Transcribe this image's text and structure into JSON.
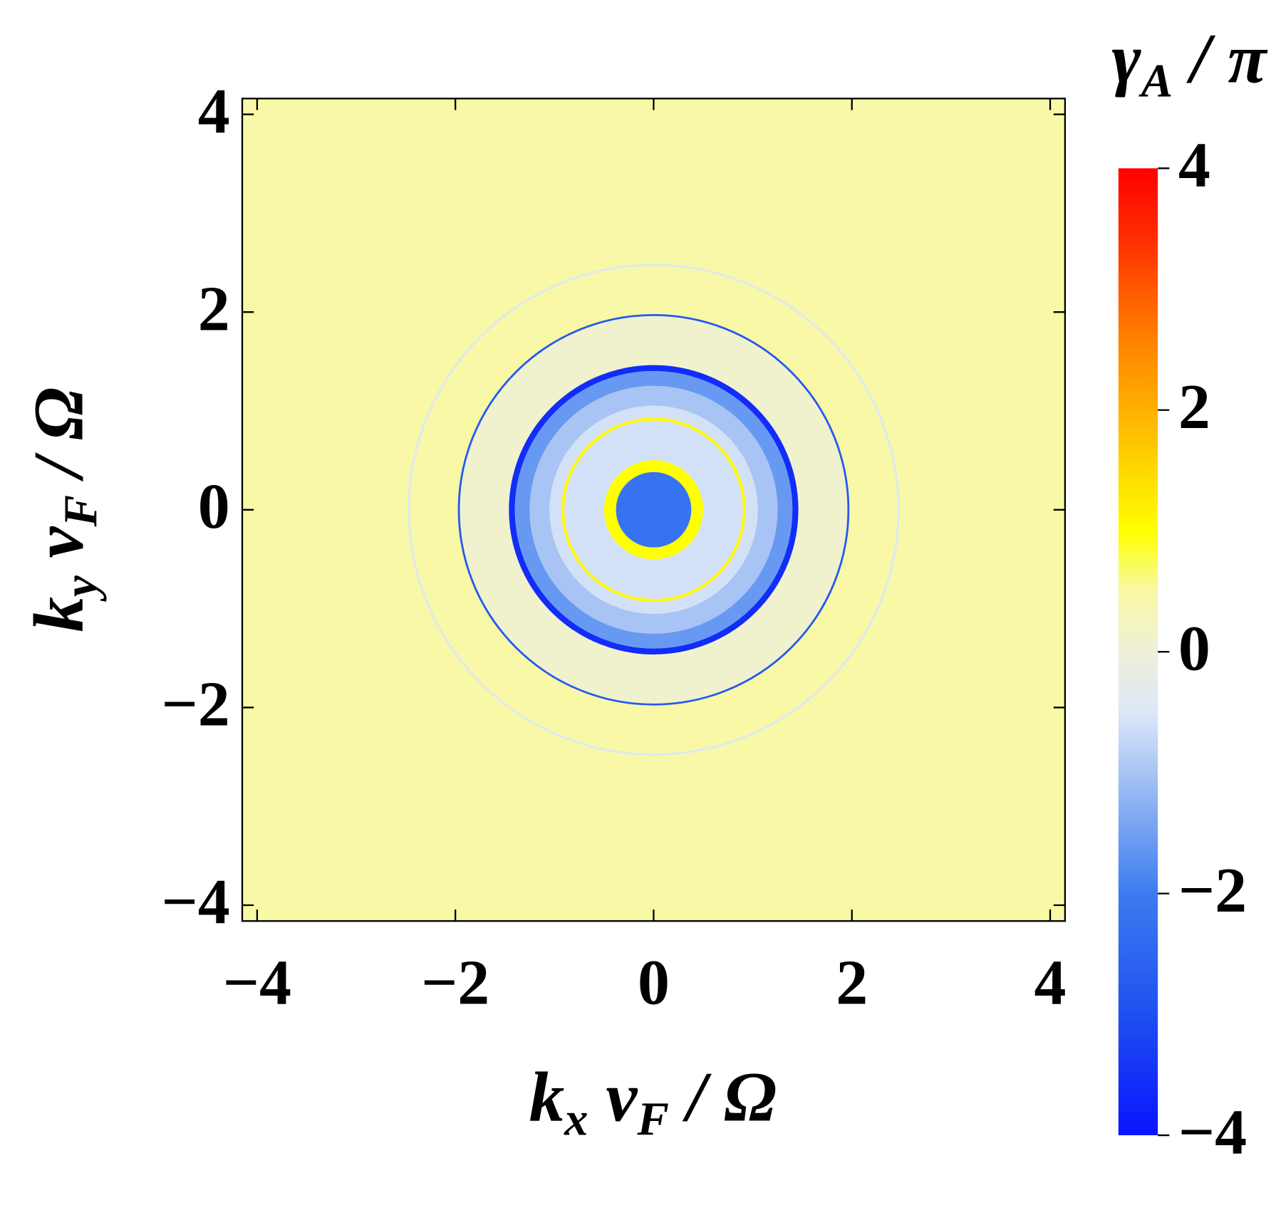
{
  "chart_data": {
    "type": "density",
    "xlabel": [
      "k",
      "x",
      " v",
      "F",
      " / Ω"
    ],
    "ylabel": [
      "k",
      "y",
      " v",
      "F",
      " / Ω"
    ],
    "colorbar_label": [
      "γ",
      "A",
      " / π"
    ],
    "xlim": [
      -4.15,
      4.15
    ],
    "ylim": [
      -4.16,
      4.16
    ],
    "xticks": [
      {
        "value": -4,
        "label": "−4"
      },
      {
        "value": -2,
        "label": "−2"
      },
      0,
      2,
      4
    ],
    "yticks": [
      {
        "value": -4,
        "label": "−4"
      },
      {
        "value": -2,
        "label": "−2"
      },
      0,
      2,
      4
    ],
    "clim": [
      -4,
      4
    ],
    "cticks": [
      {
        "value": -4,
        "label": "−4"
      },
      {
        "value": -2,
        "label": "−2"
      },
      0,
      2,
      4
    ],
    "colormap": [
      {
        "value": -4,
        "color": "#0a14ff"
      },
      {
        "value": -3,
        "color": "#1e50f0"
      },
      {
        "value": -2,
        "color": "#3c7cf0"
      },
      {
        "value": -1,
        "color": "#a8c4f4"
      },
      {
        "value": -0.5,
        "color": "#dce8f8"
      },
      {
        "value": 0,
        "color": "#eef0d8"
      },
      {
        "value": 0.5,
        "color": "#f8f8a6"
      },
      {
        "value": 1,
        "color": "#ffff00"
      },
      {
        "value": 1.8,
        "color": "#ffc000"
      },
      {
        "value": 2.6,
        "color": "#ff8000"
      },
      {
        "value": 3.4,
        "color": "#ff3000"
      },
      {
        "value": 4,
        "color": "#ff0000"
      }
    ],
    "background_value": 0.5,
    "rings": [
      {
        "inner": 2.46,
        "outer": 2.48,
        "value": -0.5
      },
      {
        "inner": 1.45,
        "outer": 1.97,
        "value": 0.1
      },
      {
        "inner": 1.955,
        "outer": 1.975,
        "value": -2.8
      },
      {
        "inner": 1.4,
        "outer": 1.46,
        "value": -3.6
      },
      {
        "inner": 1.25,
        "outer": 1.4,
        "value": -1.6
      },
      {
        "inner": 1.05,
        "outer": 1.25,
        "value": -1.0
      },
      {
        "inner": 0.93,
        "outer": 1.05,
        "value": -0.6
      },
      {
        "inner": 0.9,
        "outer": 0.93,
        "value": 1.1
      },
      {
        "inner": 0.5,
        "outer": 0.9,
        "value": -0.6
      },
      {
        "inner": 0.38,
        "outer": 0.5,
        "value": 1.0
      },
      {
        "inner": 0,
        "outer": 0.38,
        "value": -2.2
      }
    ]
  }
}
